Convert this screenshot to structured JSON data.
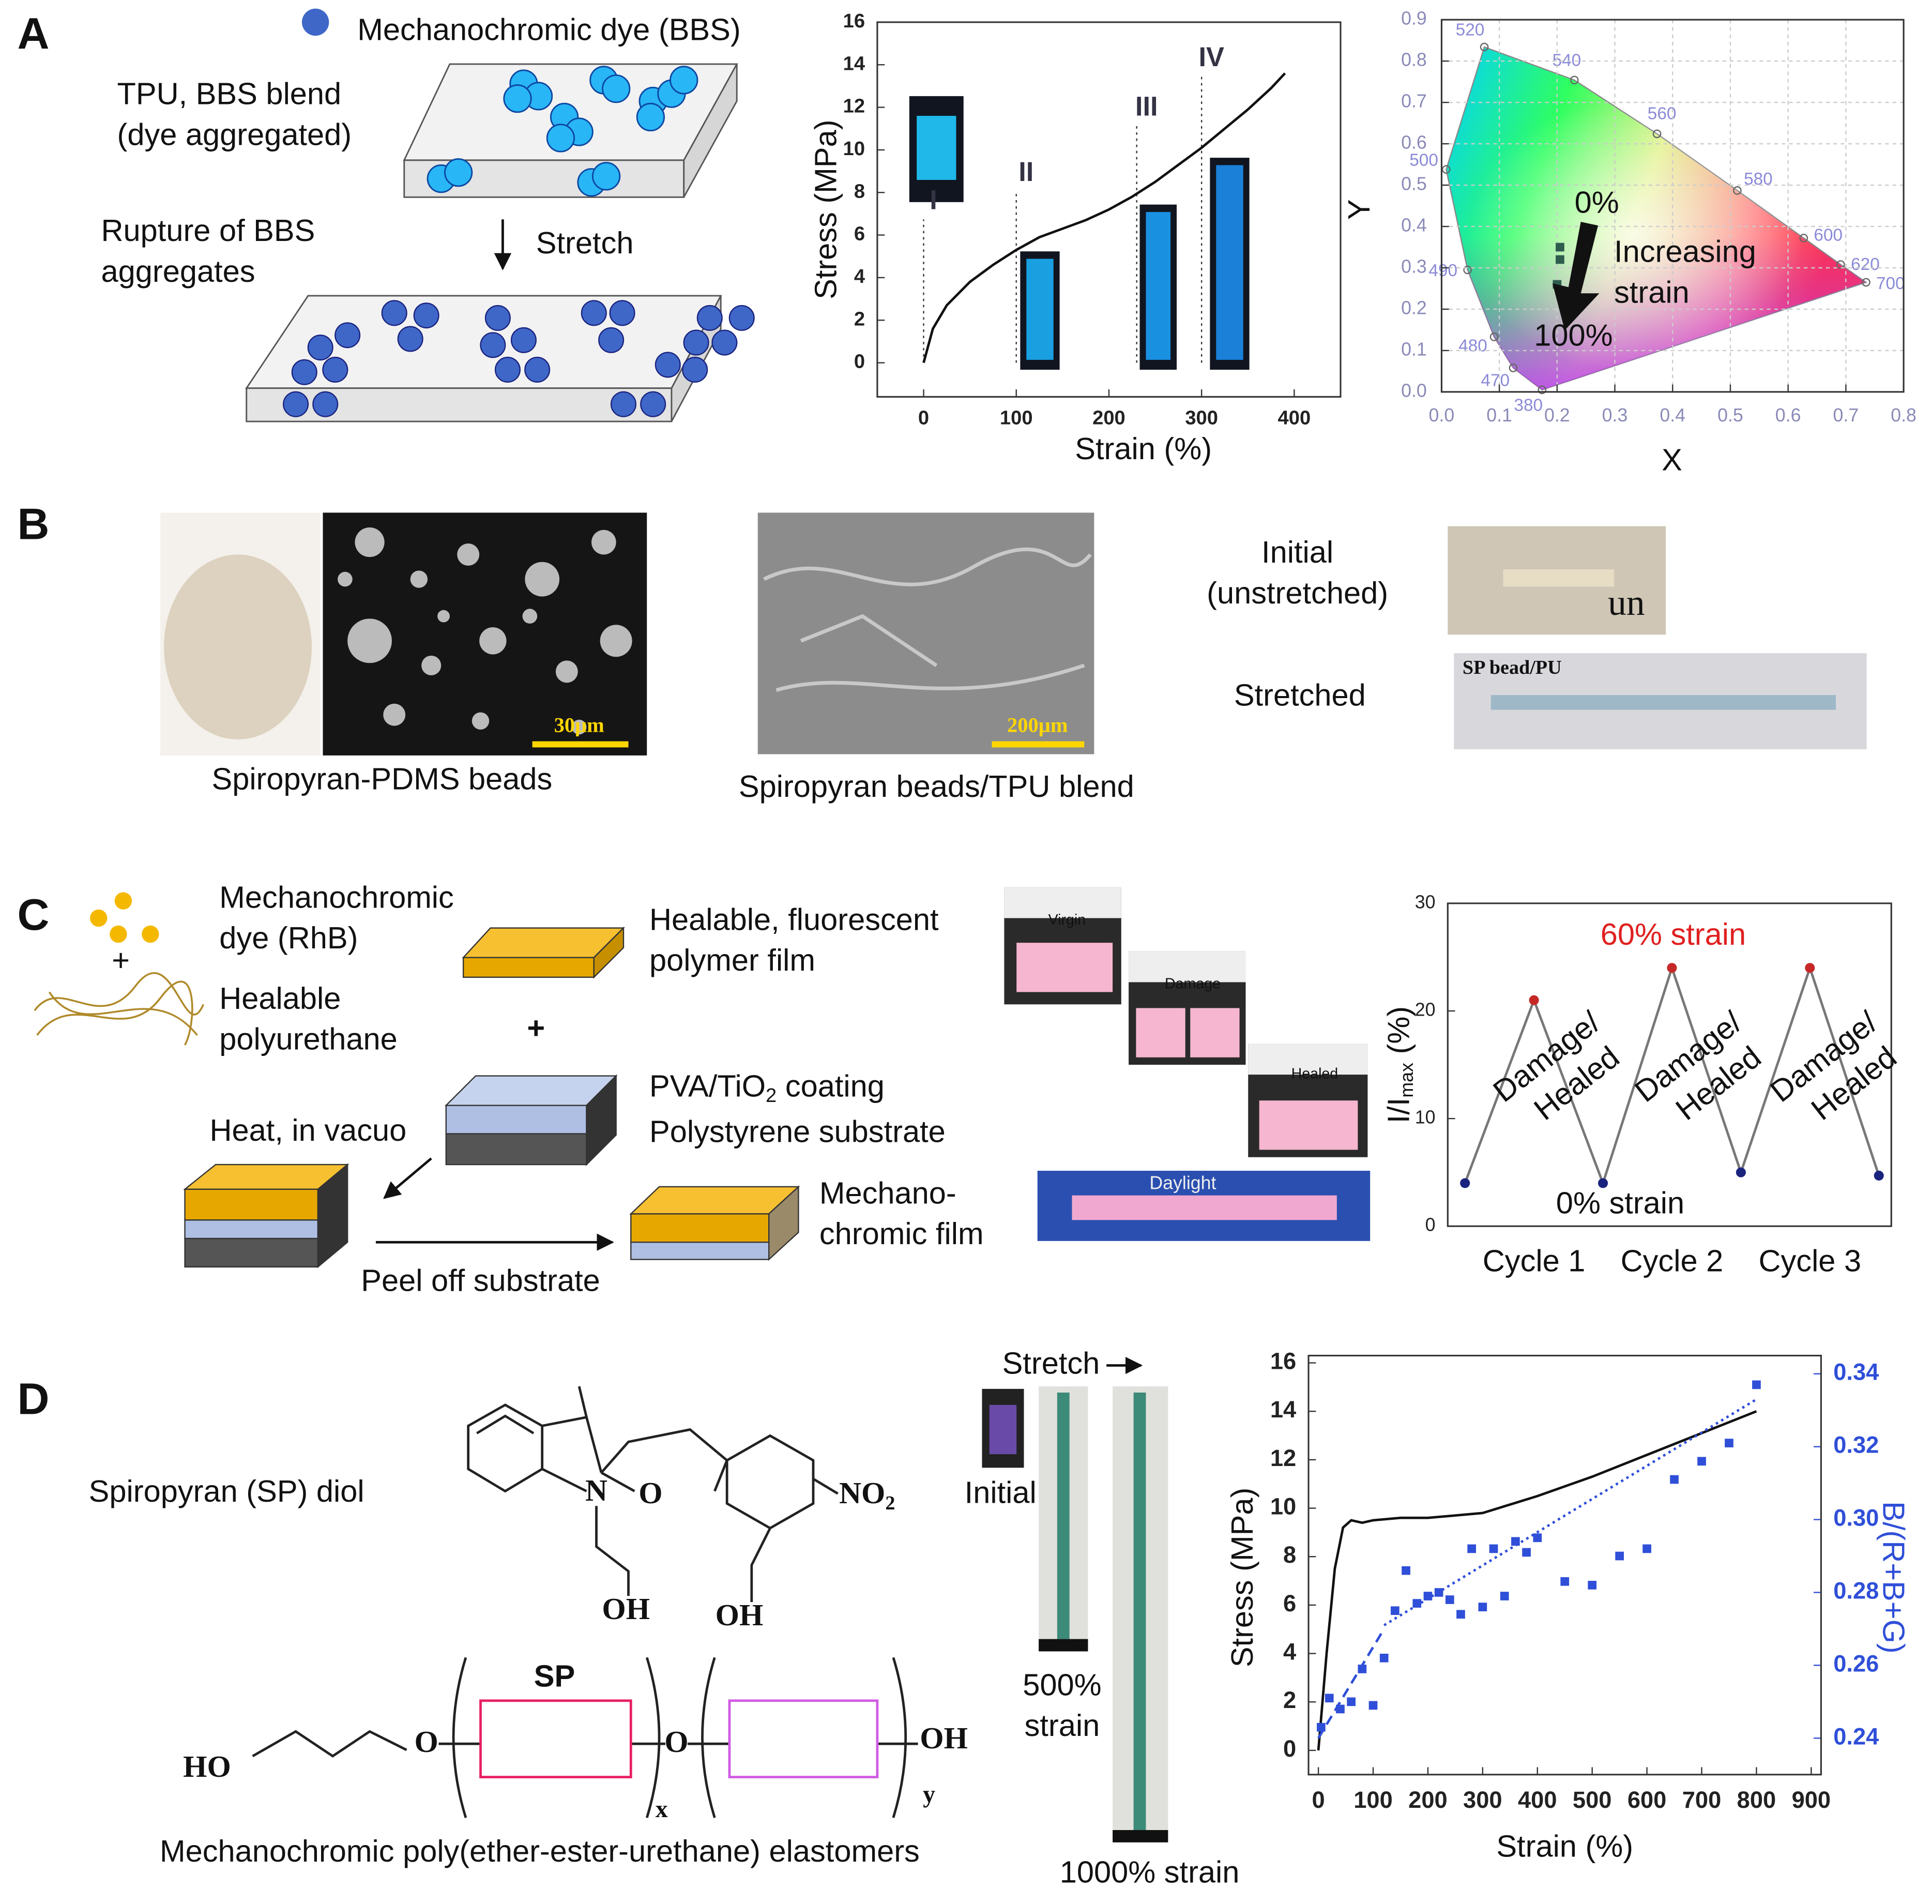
{
  "panels": {
    "A": {
      "label": "A",
      "dye_legend": "Mechanochromic dye (BBS)",
      "blend": [
        "TPU, BBS blend",
        "(dye aggregated)"
      ],
      "rupture": [
        "Rupture of BBS",
        "aggregates"
      ],
      "stretch": "Stretch"
    },
    "B": {
      "label": "B",
      "beads_caption": "Spiropyran-PDMS beads",
      "blend_caption": "Spiropyran beads/TPU blend",
      "initial": [
        "Initial",
        "(unstretched)"
      ],
      "stretched": "Stretched",
      "scale_beads": "30μm",
      "scale_blend": "200μm",
      "photo_un": "un",
      "photo_sp": "SP bead/PU"
    },
    "C": {
      "label": "C",
      "dye": [
        "Mechanochromic",
        "dye (RhB)"
      ],
      "plus_mix": "+",
      "polyurethane": [
        "Healable",
        "polyurethane"
      ],
      "film": [
        "Healable, fluorescent",
        "polymer film"
      ],
      "plus_layers": "+",
      "coating": {
        "main": "PVA/TiO",
        "sub": "2",
        "rest": " coating"
      },
      "substrate": "Polystyrene substrate",
      "heat": "Heat, in vacuo",
      "peel": "Peel off substrate",
      "product": [
        "Mechano-",
        "chromic film"
      ],
      "photos": [
        "Virgin",
        "Damage",
        "Healed",
        "Daylight"
      ]
    },
    "D": {
      "label": "D",
      "diol": "Spiropyran (SP) diol",
      "atoms": {
        "n": "N",
        "o_ring": "O",
        "no2_main": "NO",
        "no2_sub": "2",
        "oh_left": "OH",
        "oh_right": "OH"
      },
      "polymer": {
        "sp": "SP",
        "ho": "HO",
        "o_left": "O",
        "o_mid": "O",
        "oh": "OH",
        "x": "x",
        "y": "y"
      },
      "caption": "Mechanochromic poly(ether-ester-urethane) elastomers",
      "stretch": "Stretch",
      "initial": "Initial",
      "strain500": [
        "500%",
        "strain"
      ],
      "strain1000": "1000% strain"
    }
  },
  "chart_data": [
    {
      "type": "line",
      "xlabel": "Strain (%)",
      "ylabel": "Stress (MPa)",
      "xlim": [
        -50,
        450
      ],
      "ylim": [
        -1.6,
        16
      ],
      "xticks": [
        0,
        100,
        200,
        300,
        400
      ],
      "yticks": [
        0,
        2,
        4,
        6,
        8,
        10,
        12,
        14,
        16
      ],
      "series": [
        {
          "x": [
            0,
            10,
            25,
            50,
            75,
            100,
            125,
            150,
            175,
            200,
            225,
            250,
            275,
            300,
            325,
            350,
            375,
            390
          ],
          "values": [
            0,
            1.6,
            2.7,
            3.8,
            4.6,
            5.3,
            5.9,
            6.3,
            6.7,
            7.2,
            7.8,
            8.5,
            9.3,
            10.1,
            11,
            11.9,
            12.9,
            13.6
          ],
          "color": "#111111",
          "style": "line"
        }
      ],
      "regions": {
        "labels": [
          "I",
          "II",
          "III",
          "IV"
        ],
        "x": [
          0,
          100,
          230,
          300
        ]
      }
    },
    {
      "type": "scatter",
      "xlabel": "X",
      "ylabel": "Y",
      "xlim": [
        0,
        0.8
      ],
      "ylim": [
        0,
        0.9
      ],
      "grid": true,
      "xticks": [
        {
          "value": 0,
          "label": "0.0"
        },
        0.1,
        0.2,
        0.3,
        0.4,
        0.5,
        0.6,
        0.7,
        0.8
      ],
      "yticks": [
        {
          "value": 0,
          "label": "0.0"
        },
        0.1,
        0.2,
        0.3,
        0.4,
        0.5,
        0.6,
        0.7,
        0.8,
        0.9
      ],
      "locus": {
        "wavelengths": [
          "380",
          "470",
          "480",
          "490",
          "500",
          "520",
          "540",
          "560",
          "580",
          "600",
          "620",
          "700"
        ],
        "x": [
          0.174,
          0.124,
          0.091,
          0.045,
          0.008,
          0.074,
          0.23,
          0.373,
          0.512,
          0.627,
          0.691,
          0.735
        ],
        "y": [
          0.005,
          0.058,
          0.133,
          0.295,
          0.538,
          0.834,
          0.754,
          0.624,
          0.487,
          0.372,
          0.308,
          0.265
        ]
      },
      "series": [
        {
          "x": [
            0.205,
            0.205,
            0.2
          ],
          "values": [
            0.35,
            0.32,
            0.26
          ],
          "color": "#2e5d4e",
          "style": "markers"
        }
      ],
      "annotations": [
        "0%",
        "100%"
      ],
      "strain_note": [
        "Increasing",
        "strain"
      ]
    },
    {
      "type": "line",
      "ylabel": {
        "main": "I/I",
        "sub": "max",
        "rest": " (%)"
      },
      "xlim": [
        -0.125,
        3.09
      ],
      "ylim": [
        0,
        30
      ],
      "yticks": [
        0,
        10,
        20,
        30
      ],
      "categories": [
        "Cycle 1",
        "Cycle 2",
        "Cycle 3"
      ],
      "series": [
        {
          "x": [
            0,
            0.5,
            1,
            1.5,
            2,
            2.5,
            3
          ],
          "values": [
            4,
            21,
            4,
            24,
            5,
            24,
            4.7
          ],
          "color": "#777777",
          "style": "line",
          "point_colors": [
            "#1a237e",
            "#c62828",
            "#1a237e",
            "#c62828",
            "#1a237e",
            "#c62828",
            "#1a237e"
          ]
        }
      ],
      "annotations": [
        "60% strain",
        "0% strain"
      ],
      "cycle_notes": [
        [
          "Damage/",
          "Healed"
        ],
        [
          "Damage/",
          "Healed"
        ],
        [
          "Damage/",
          "Healed"
        ]
      ]
    },
    {
      "type": "line",
      "xlabel": "Strain (%)",
      "ylabel": "Stress (MPa)",
      "y2label": "B/(R+B+G)",
      "xlim": [
        -18,
        918
      ],
      "ylim": [
        -1,
        16.3
      ],
      "y2lim": [
        0.23,
        0.345
      ],
      "xticks": [
        0,
        100,
        200,
        300,
        400,
        500,
        600,
        700,
        800,
        900
      ],
      "yticks": [
        0,
        2,
        4,
        6,
        8,
        10,
        12,
        14,
        16
      ],
      "y2ticks": [
        0.24,
        0.26,
        0.28,
        {
          "value": 0.3,
          "label": "0.30"
        },
        0.32,
        0.34
      ],
      "series": [
        {
          "x": [
            0,
            15,
            30,
            45,
            60,
            80,
            100,
            150,
            200,
            300,
            400,
            500,
            600,
            700,
            800
          ],
          "values": [
            0,
            4,
            7.5,
            9.2,
            9.5,
            9.4,
            9.5,
            9.6,
            9.6,
            9.8,
            10.5,
            11.3,
            12.2,
            13.1,
            14
          ],
          "color": "#111111",
          "style": "line"
        },
        {
          "axis": "y2",
          "x": [
            5,
            20,
            40,
            60,
            80,
            100,
            120,
            140,
            160,
            180,
            200,
            220,
            240,
            260,
            280,
            300,
            320,
            340,
            360,
            380,
            400,
            450,
            500,
            550,
            600,
            650,
            700,
            750,
            800
          ],
          "values": [
            0.243,
            0.251,
            0.248,
            0.25,
            0.259,
            0.249,
            0.262,
            0.275,
            0.286,
            0.277,
            0.279,
            0.28,
            0.278,
            0.274,
            0.292,
            0.276,
            0.292,
            0.279,
            0.294,
            0.291,
            0.295,
            0.283,
            0.282,
            0.29,
            0.292,
            0.311,
            0.316,
            0.321,
            0.337
          ],
          "color": "#2f4fd8",
          "style": "markers"
        },
        {
          "axis": "y2",
          "x": [
            0,
            120
          ],
          "values": [
            0.24,
            0.27
          ],
          "color": "#2f4fd8",
          "style": "dashed"
        },
        {
          "axis": "y2",
          "x": [
            120,
            800
          ],
          "values": [
            0.271,
            0.333
          ],
          "color": "#2f4fd8",
          "style": "dotted"
        }
      ]
    }
  ]
}
